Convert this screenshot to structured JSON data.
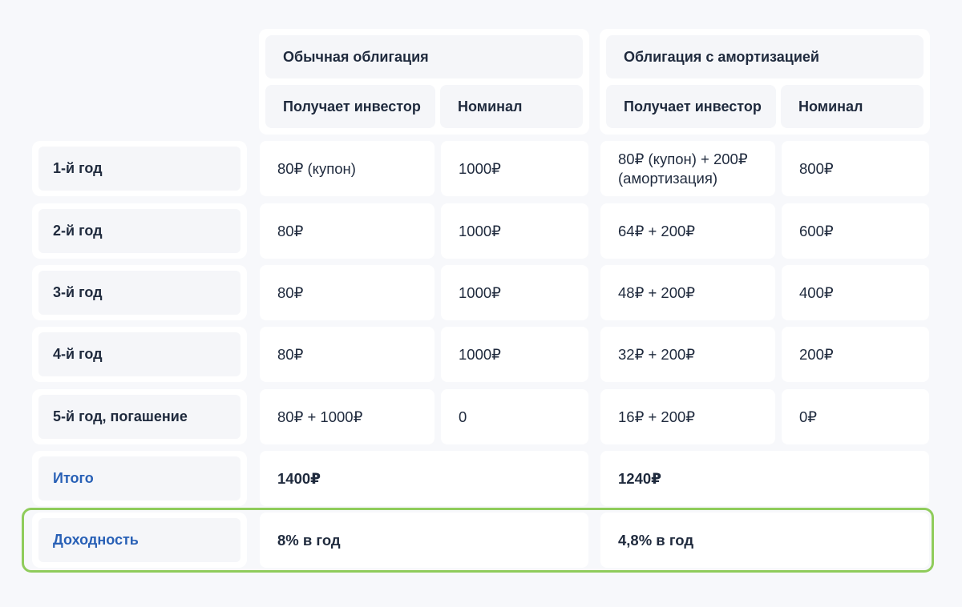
{
  "headers": {
    "bond_regular": "Обычная облигация",
    "bond_amortized": "Облигация с амортизацией",
    "investor_receives_1": "Получает инвестор",
    "nominal_1": "Номинал",
    "investor_receives_2": "Получает инвестор",
    "nominal_2": "Номинал"
  },
  "rows": [
    {
      "label": "1-й год",
      "regular_receive": "80₽ (купон)",
      "regular_nominal": "1000₽",
      "amort_receive": "80₽ (купон) + 200₽ (амортизация)",
      "amort_nominal": "800₽"
    },
    {
      "label": "2-й год",
      "regular_receive": "80₽",
      "regular_nominal": "1000₽",
      "amort_receive": "64₽ + 200₽",
      "amort_nominal": "600₽"
    },
    {
      "label": "3-й год",
      "regular_receive": "80₽",
      "regular_nominal": "1000₽",
      "amort_receive": "48₽ + 200₽",
      "amort_nominal": "400₽"
    },
    {
      "label": "4-й год",
      "regular_receive": "80₽",
      "regular_nominal": "1000₽",
      "amort_receive": "32₽ + 200₽",
      "amort_nominal": "200₽"
    },
    {
      "label": "5-й год, погашение",
      "regular_receive": "80₽ + 1000₽",
      "regular_nominal": "0",
      "amort_receive": "16₽ + 200₽",
      "amort_nominal": "0₽"
    }
  ],
  "total": {
    "label": "Итого",
    "regular": "1400₽",
    "amortized": "1240₽"
  },
  "yield": {
    "label": "Доходность",
    "regular": "8% в год",
    "amortized": "4,8% в год"
  },
  "colors": {
    "accent_text": "#2860b6",
    "highlight_border": "#8fcc5b",
    "header_bg": "#f5f6f9",
    "page_bg": "#f7f8fb"
  }
}
